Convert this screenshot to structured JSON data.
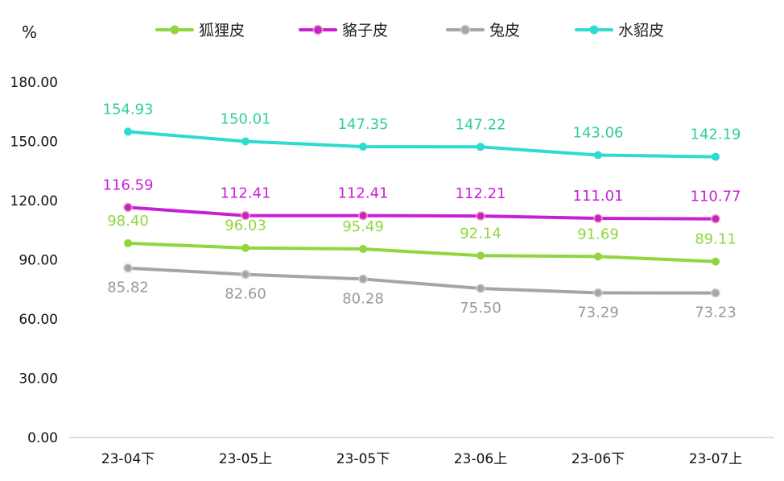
{
  "chart_data": {
    "type": "line",
    "ylabel": "%",
    "ylim": [
      0,
      180
    ],
    "yticks": [
      "0.00",
      "30.00",
      "60.00",
      "90.00",
      "120.00",
      "150.00",
      "180.00"
    ],
    "categories": [
      "23-04下",
      "23-05上",
      "23-05下",
      "23-06上",
      "23-06下",
      "23-07上"
    ],
    "legend_position": "top",
    "grid": false,
    "series": [
      {
        "name": "狐狸皮",
        "color": "#8fd63f",
        "label_color": "#8fd63f",
        "values": [
          98.4,
          96.03,
          95.49,
          92.14,
          91.69,
          89.11
        ],
        "labels": [
          "98.40",
          "96.03",
          "95.49",
          "92.14",
          "91.69",
          "89.11"
        ]
      },
      {
        "name": "貉子皮",
        "color": "#c81fd6",
        "label_color": "#c81fd6",
        "values": [
          116.59,
          112.41,
          112.41,
          112.21,
          111.01,
          110.77
        ],
        "labels": [
          "116.59",
          "112.41",
          "112.41",
          "112.21",
          "111.01",
          "110.77"
        ]
      },
      {
        "name": "兔皮",
        "color": "#a5a5a5",
        "label_color": "#9a9a9a",
        "values": [
          85.82,
          82.6,
          80.28,
          75.5,
          73.29,
          73.23
        ],
        "labels": [
          "85.82",
          "82.60",
          "80.28",
          "75.50",
          "73.29",
          "73.23"
        ]
      },
      {
        "name": "水貂皮",
        "color": "#2ddbd0",
        "label_color": "#2ecf9a",
        "values": [
          154.93,
          150.01,
          147.35,
          147.22,
          143.06,
          142.19
        ],
        "labels": [
          "154.93",
          "150.01",
          "147.35",
          "147.22",
          "143.06",
          "142.19"
        ]
      }
    ]
  }
}
